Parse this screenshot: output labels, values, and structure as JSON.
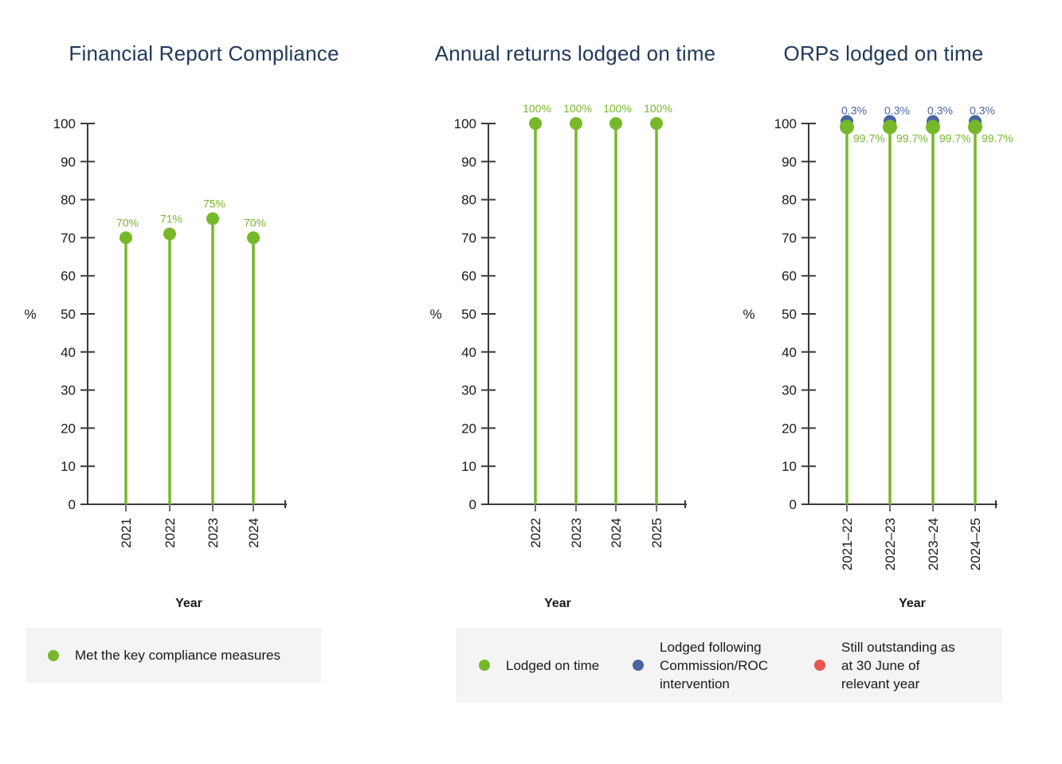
{
  "colors": {
    "green": "#76B82A",
    "blue": "#4A64A4",
    "red": "#E85550",
    "title": "#21395A",
    "axis": "#3A3A3A",
    "text": "#1A1A1A",
    "x_tick": "#6E6E6E",
    "legend_background": "#F4F4F4"
  },
  "chart_data": [
    {
      "type": "lollipop",
      "title": "Financial Report Compliance",
      "xlabel": "Year",
      "ylabel": "%",
      "ylim": [
        0,
        100
      ],
      "yticks": [
        0,
        10,
        20,
        30,
        40,
        50,
        60,
        70,
        80,
        90,
        100
      ],
      "grid": false,
      "legend_position": "below",
      "categories": [
        "2021",
        "2022",
        "2023",
        "2024"
      ],
      "series": [
        {
          "name": "Met the key compliance measures",
          "color": "#76B82A",
          "values": [
            70,
            71,
            75,
            70
          ],
          "point_labels": [
            "70%",
            "71%",
            "75%",
            "70%"
          ],
          "label_position": "above"
        }
      ]
    },
    {
      "type": "lollipop",
      "title": "Annual returns lodged on time",
      "xlabel": "Year",
      "ylabel": "%",
      "ylim": [
        0,
        100
      ],
      "yticks": [
        0,
        10,
        20,
        30,
        40,
        50,
        60,
        70,
        80,
        90,
        100
      ],
      "grid": false,
      "legend_position": "below",
      "categories": [
        "2022",
        "2023",
        "2024",
        "2025"
      ],
      "series": [
        {
          "name": "Lodged on time",
          "color": "#76B82A",
          "values": [
            100,
            100,
            100,
            100
          ],
          "point_labels": [
            "100%",
            "100%",
            "100%",
            "100%"
          ],
          "label_position": "above"
        }
      ]
    },
    {
      "type": "lollipop",
      "title": "ORPs lodged on time",
      "xlabel": "Year",
      "ylabel": "%",
      "ylim": [
        0,
        100
      ],
      "yticks": [
        0,
        10,
        20,
        30,
        40,
        50,
        60,
        70,
        80,
        90,
        100
      ],
      "grid": false,
      "legend_position": "below",
      "categories": [
        "2021–22",
        "2022–23",
        "2023–24",
        "2024–25"
      ],
      "series": [
        {
          "name": "Lodged on time",
          "color": "#76B82A",
          "values": [
            99.7,
            99.7,
            99.7,
            99.7
          ],
          "point_labels": [
            "99.7%",
            "99.7%",
            "99.7%",
            "99.7%"
          ],
          "label_position": "right"
        },
        {
          "name": "Lodged following Commission/ROC intervention",
          "color": "#4A64A4",
          "values": [
            0.3,
            0.3,
            0.3,
            0.3
          ],
          "point_labels": [
            "0.3%",
            "0.3%",
            "0.3%",
            "0.3%"
          ],
          "label_position": "above",
          "stacked_on_top": true
        }
      ]
    }
  ],
  "legends": {
    "chart1": {
      "items": [
        {
          "label": "Met the key compliance measures",
          "color": "#76B82A"
        }
      ]
    },
    "shared": {
      "items": [
        {
          "label": "Lodged on time",
          "color": "#76B82A"
        },
        {
          "label": "Lodged following\nCommission/ROC\nintervention",
          "color": "#4A64A4"
        },
        {
          "label": "Still outstanding as\nat 30 June of\nrelevant year",
          "color": "#E85550"
        }
      ]
    }
  }
}
